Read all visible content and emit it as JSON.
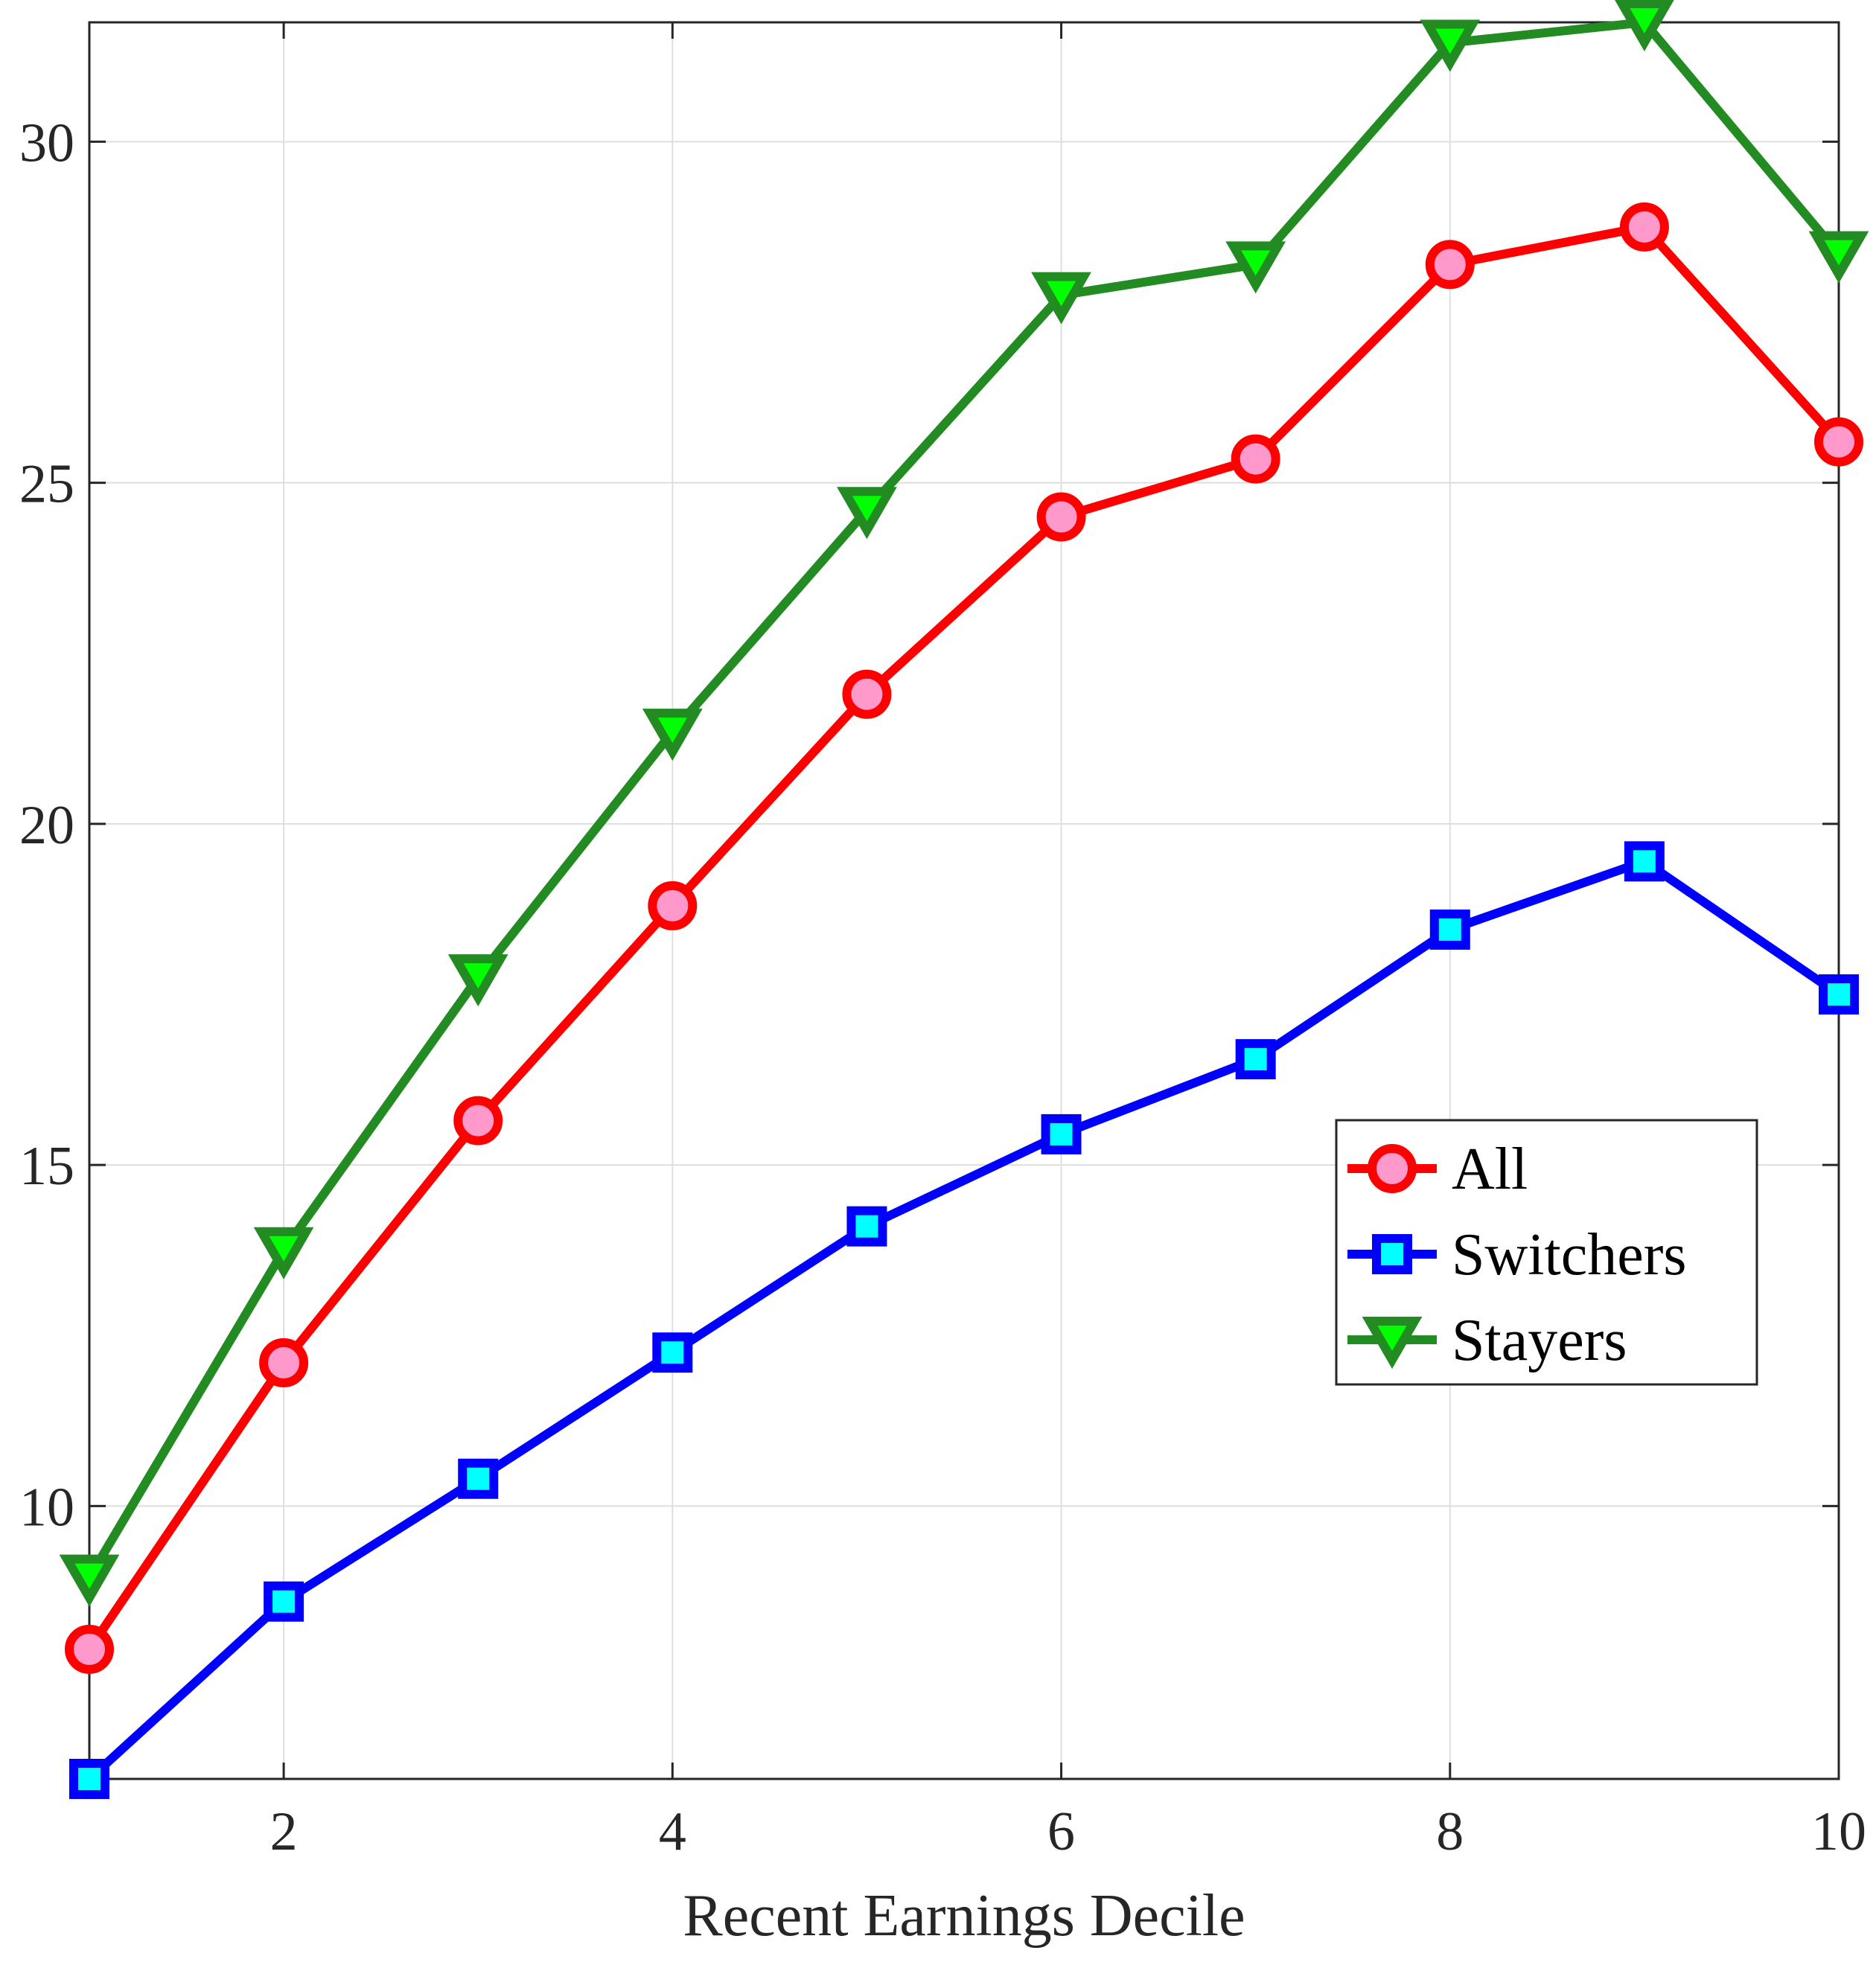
{
  "chart_data": {
    "type": "line",
    "xlabel": "Recent Earnings Decile",
    "ylabel": "",
    "x": [
      1,
      2,
      3,
      4,
      5,
      6,
      7,
      8,
      9,
      10
    ],
    "xlim": [
      1,
      10
    ],
    "ylim": [
      6,
      31.75
    ],
    "xticks": [
      2,
      4,
      6,
      8,
      10
    ],
    "yticks": [
      10,
      15,
      20,
      25,
      30
    ],
    "grid": true,
    "legend_position": "right-middle",
    "series": [
      {
        "name": "All",
        "values": [
          7.9,
          12.1,
          15.65,
          18.8,
          21.9,
          24.5,
          25.35,
          28.2,
          28.75,
          25.6
        ],
        "color": "#ff0000",
        "marker": "circle",
        "marker_fill": "#ff99cc"
      },
      {
        "name": "Switchers",
        "values": [
          6.0,
          8.6,
          10.4,
          12.25,
          14.1,
          15.45,
          16.55,
          18.45,
          19.45,
          17.5
        ],
        "color": "#0000ff",
        "marker": "square",
        "marker_fill": "#00ffff"
      },
      {
        "name": "Stayers",
        "values": [
          8.95,
          13.75,
          17.75,
          21.35,
          24.6,
          27.75,
          28.2,
          31.45,
          31.75,
          28.35
        ],
        "color": "#228b22",
        "marker": "triangle-down",
        "marker_fill": "#00ff00"
      }
    ]
  }
}
